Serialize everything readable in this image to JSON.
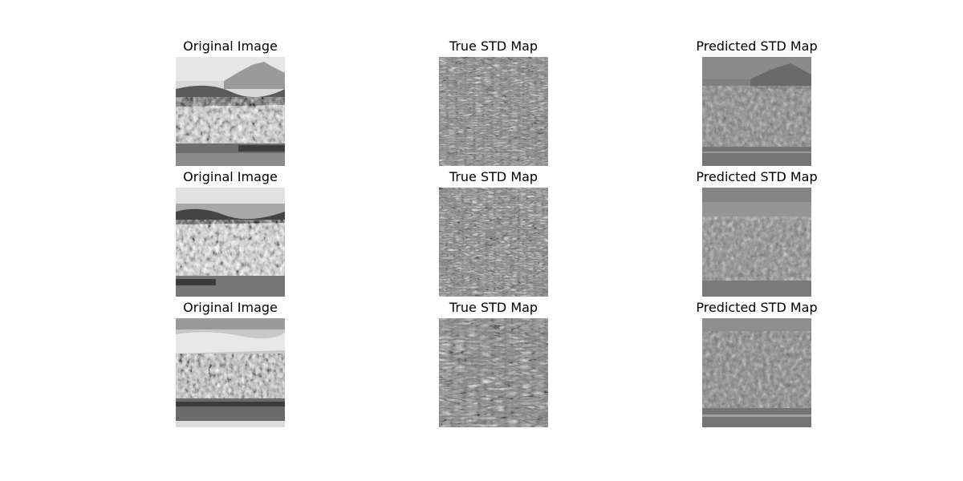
{
  "figure": {
    "rows": [
      {
        "original_title": "Original Image",
        "true_title": "True STD Map",
        "pred_title": "Predicted STD Map"
      },
      {
        "original_title": "Original Image",
        "true_title": "True STD Map",
        "pred_title": "Predicted STD Map"
      },
      {
        "original_title": "Original Image",
        "true_title": "True STD Map",
        "pred_title": "Predicted STD Map"
      }
    ]
  },
  "colors": {
    "background": "#ffffff",
    "original_base": "#8a8a8a",
    "true_base": "#8c8c8c",
    "pred_base": "#7e7e7e"
  },
  "colormap": "grayscale"
}
